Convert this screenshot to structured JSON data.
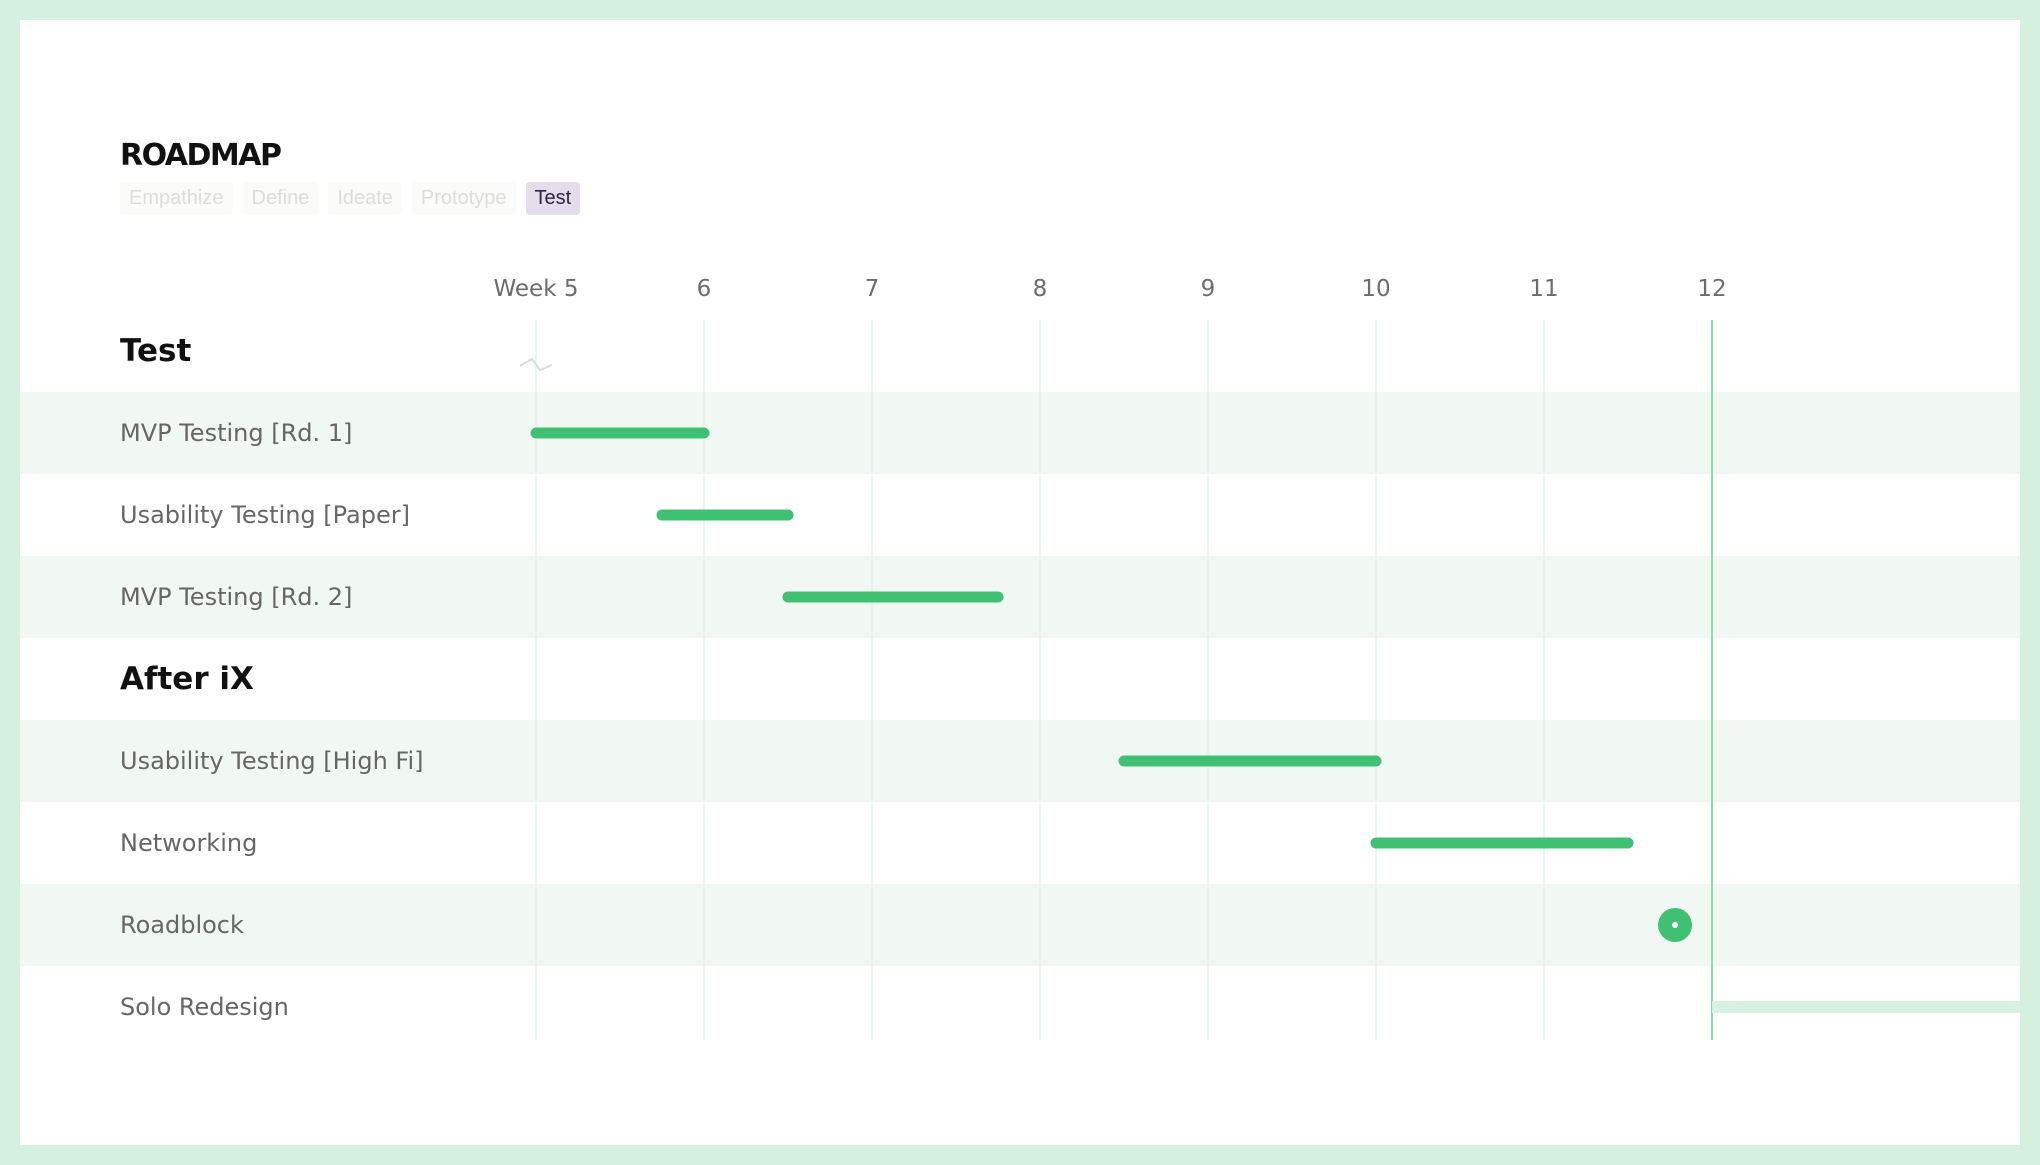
{
  "page": {
    "title": "ROADMAP",
    "phases": [
      {
        "label": "Empathize",
        "active": false
      },
      {
        "label": "Define",
        "active": false
      },
      {
        "label": "Ideate",
        "active": false
      },
      {
        "label": "Prototype",
        "active": false
      },
      {
        "label": "Test",
        "active": true
      }
    ]
  },
  "colors": {
    "frame": "#d5efe0",
    "bar": "#3fc072",
    "band": "#f1f8f3",
    "gridline": "#e3f3ea",
    "current_week_line": "#8edbb0",
    "future_bar": "#d9f1e3",
    "active_tab_bg": "#e5dcec"
  },
  "chart_data": {
    "type": "gantt",
    "weeks": [
      {
        "value": 5,
        "label": "Week 5"
      },
      {
        "value": 6,
        "label": "6"
      },
      {
        "value": 7,
        "label": "7"
      },
      {
        "value": 8,
        "label": "8"
      },
      {
        "value": 9,
        "label": "9"
      },
      {
        "value": 10,
        "label": "10"
      },
      {
        "value": 11,
        "label": "11"
      },
      {
        "value": 12,
        "label": "12"
      }
    ],
    "current_week": 12,
    "axis_break_at": 5,
    "rows": [
      {
        "type": "section",
        "label": "Test"
      },
      {
        "type": "task",
        "label": "MVP Testing [Rd. 1]",
        "start": 5.0,
        "end": 6.0
      },
      {
        "type": "task",
        "label": "Usability Testing [Paper]",
        "start": 5.75,
        "end": 6.5
      },
      {
        "type": "task",
        "label": "MVP Testing [Rd. 2]",
        "start": 6.5,
        "end": 7.75
      },
      {
        "type": "section",
        "label": "After iX"
      },
      {
        "type": "task",
        "label": "Usability Testing [High Fi]",
        "start": 8.5,
        "end": 10.0
      },
      {
        "type": "task",
        "label": "Networking",
        "start": 10.0,
        "end": 11.5
      },
      {
        "type": "milestone",
        "label": "Roadblock",
        "at": 11.78
      },
      {
        "type": "task",
        "label": "Solo Redesign",
        "start": 12.0,
        "end": null,
        "status": "upcoming"
      }
    ]
  }
}
